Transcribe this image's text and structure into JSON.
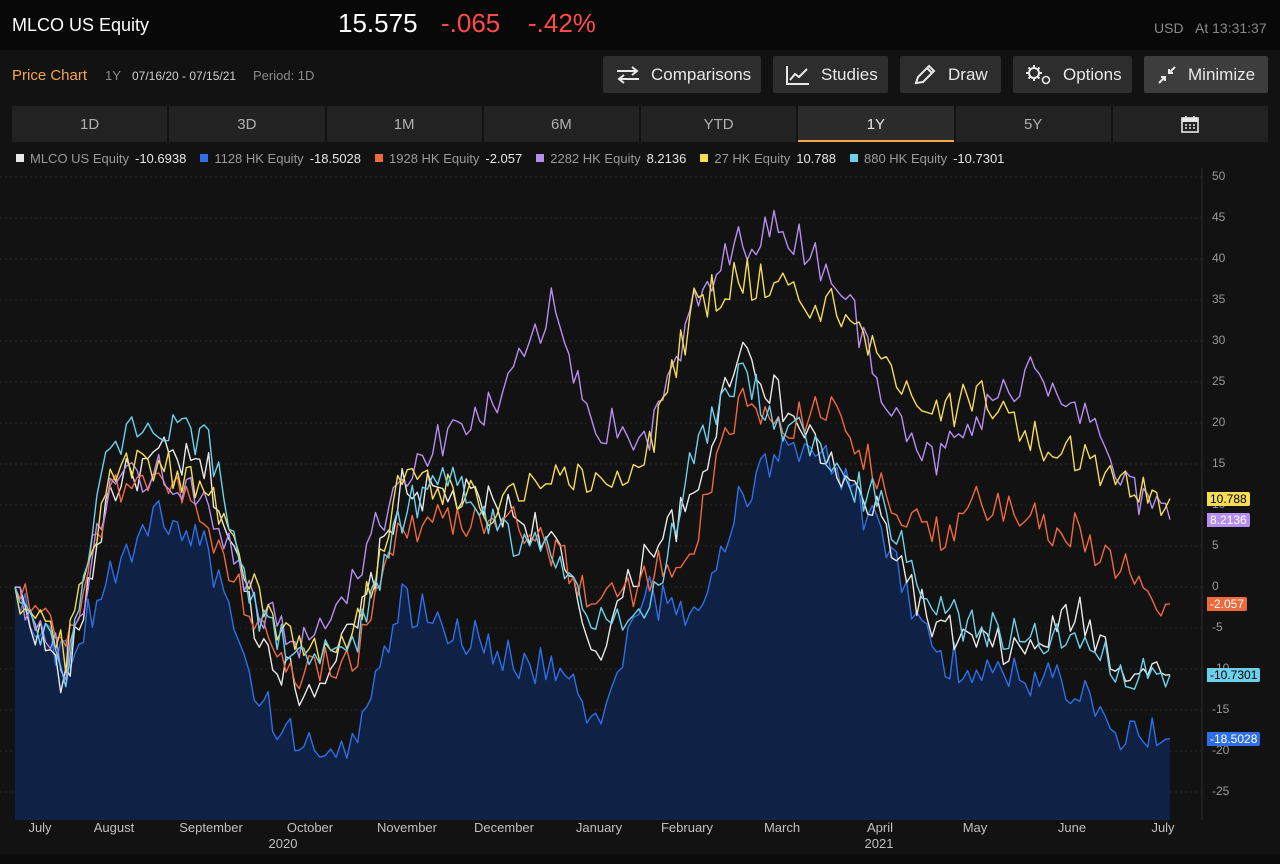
{
  "header": {
    "ticker": "MLCO US Equity",
    "last_price": "15.575",
    "net_change": "-.065",
    "pct_change": "-.42%",
    "currency": "USD",
    "as_of": "At 13:31:37"
  },
  "chart_bar": {
    "title": "Price Chart",
    "range": "1Y",
    "dates": "07/16/20 - 07/15/21",
    "period": "Period: 1D"
  },
  "toolbar": {
    "comparisons": "Comparisons",
    "studies": "Studies",
    "draw": "Draw",
    "options": "Options",
    "minimize": "Minimize"
  },
  "tabs": [
    {
      "label": "1D"
    },
    {
      "label": "3D"
    },
    {
      "label": "1M"
    },
    {
      "label": "6M"
    },
    {
      "label": "YTD"
    },
    {
      "label": "1Y",
      "active": true
    },
    {
      "label": "5Y"
    },
    {
      "label": "",
      "icon": "calendar-icon"
    }
  ],
  "chart_data": {
    "type": "line",
    "ylim": [
      -30,
      50
    ],
    "yticks": [
      "50",
      "45",
      "40",
      "35",
      "30",
      "25",
      "20",
      "15",
      "10",
      "5",
      "0",
      "-5",
      "-10",
      "-15",
      "-20",
      "-25"
    ],
    "xlabels": [
      "July",
      "August",
      "September",
      "October",
      "November",
      "December",
      "January",
      "February",
      "March",
      "April",
      "May",
      "June",
      "July"
    ],
    "year_labels": [
      "2020",
      "2021"
    ],
    "x_dates": [
      "2020-07-16",
      "2020-08-01",
      "2020-08-15",
      "2020-09-01",
      "2020-09-15",
      "2020-10-01",
      "2020-10-15",
      "2020-11-01",
      "2020-11-15",
      "2020-12-01",
      "2020-12-15",
      "2021-01-01",
      "2021-01-15",
      "2021-02-01",
      "2021-02-15",
      "2021-03-01",
      "2021-03-15",
      "2021-04-01",
      "2021-04-15",
      "2021-05-01",
      "2021-05-15",
      "2021-06-01",
      "2021-06-15",
      "2021-07-01",
      "2021-07-15"
    ],
    "series": [
      {
        "name": "MLCO US Equity",
        "last": "-10.6938",
        "color": "#e8e8e8",
        "fill": false,
        "values": [
          0,
          -12,
          12,
          16,
          14,
          -6,
          -13,
          -5,
          12,
          11,
          10,
          6,
          -8,
          5,
          10,
          30,
          22,
          14,
          8,
          -5,
          -7,
          -8,
          -3,
          -10,
          -10.69
        ]
      },
      {
        "name": "1128 HK Equity",
        "last": "-18.5028",
        "color": "#2e6fe6",
        "fill": true,
        "values": [
          0,
          -9,
          2,
          9,
          4,
          -14,
          -20,
          -18,
          -2,
          -5,
          -8,
          -10,
          -16,
          -1,
          -4,
          10,
          18,
          14,
          6,
          -8,
          -10,
          -11,
          -12,
          -18,
          -18.5
        ]
      },
      {
        "name": "1928 HK Equity",
        "last": "-2.057",
        "color": "#ee6a3d",
        "fill": false,
        "values": [
          0,
          -8,
          12,
          14,
          7,
          -5,
          -11,
          -8,
          8,
          8,
          9,
          5,
          -2,
          1,
          6,
          22,
          20,
          22,
          12,
          6,
          10,
          8,
          7,
          2,
          -2.06
        ]
      },
      {
        "name": "2282 HK Equity",
        "last": "8.2136",
        "color": "#b68ef0",
        "fill": false,
        "values": [
          0,
          -10,
          13,
          14,
          9,
          -3,
          -7,
          2,
          14,
          19,
          22,
          34,
          20,
          18,
          34,
          42,
          44,
          38,
          25,
          15,
          20,
          27,
          23,
          12,
          8.21
        ]
      },
      {
        "name": "27 HK Equity",
        "last": "10.788",
        "color": "#f5dc55",
        "fill": false,
        "values": [
          0,
          -8,
          14,
          15,
          12,
          -2,
          -8,
          -5,
          14,
          12,
          9,
          15,
          12,
          17,
          34,
          38,
          36,
          34,
          28,
          20,
          24,
          18,
          16,
          12,
          10.79
        ]
      },
      {
        "name": "880 HK Equity",
        "last": "-10.7301",
        "color": "#6dd0ea",
        "fill": false,
        "values": [
          0,
          -10,
          18,
          19,
          18,
          -4,
          -9,
          -6,
          9,
          14,
          7,
          4,
          -5,
          -3,
          16,
          26,
          20,
          14,
          10,
          -2,
          -5,
          -6,
          -7,
          -10,
          -10.73
        ]
      }
    ]
  }
}
